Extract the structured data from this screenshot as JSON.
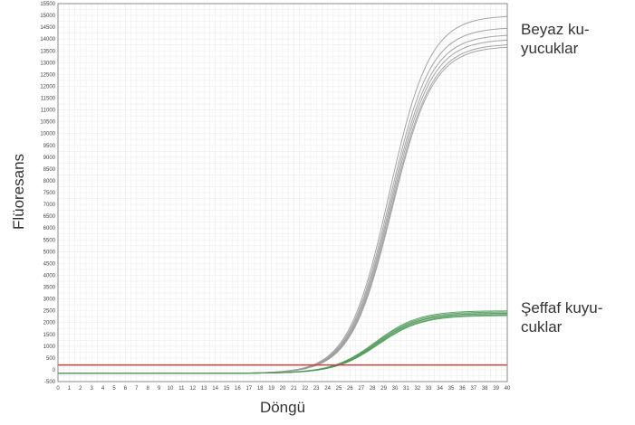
{
  "chart_data": {
    "type": "line",
    "xlabel": "Döngü",
    "ylabel": "Flüoresans",
    "xlim": [
      0,
      40
    ],
    "ylim": [
      -500,
      15500
    ],
    "x_ticks": [
      0,
      1,
      2,
      3,
      4,
      5,
      6,
      7,
      8,
      9,
      10,
      11,
      12,
      13,
      14,
      15,
      16,
      17,
      18,
      19,
      20,
      21,
      22,
      23,
      24,
      25,
      26,
      27,
      28,
      29,
      30,
      31,
      32,
      33,
      34,
      35,
      36,
      37,
      38,
      39,
      40
    ],
    "y_ticks": [
      -500,
      0,
      500,
      1000,
      1500,
      2000,
      2500,
      3000,
      3500,
      4000,
      4500,
      5000,
      5500,
      6000,
      6500,
      7000,
      7500,
      8000,
      8500,
      9000,
      9500,
      10000,
      10500,
      11000,
      11500,
      12000,
      12500,
      13000,
      13500,
      14000,
      14500,
      15000,
      15500
    ],
    "grid": true,
    "threshold": {
      "y": 200,
      "color": "#d23a3a"
    },
    "annotations": [
      {
        "lines": [
          "Beyaz ku-",
          "yucuklar"
        ],
        "anchor_series": "white"
      },
      {
        "lines": [
          "Şeffaf kuyu-",
          "cuklar"
        ],
        "anchor_series": "clear"
      }
    ],
    "series": [
      {
        "group": "white",
        "color": "#9a9a9a",
        "plateau": [
          15000,
          14500,
          14200,
          14000,
          13800,
          13700
        ],
        "midpoint": 29.6,
        "slope": 0.55,
        "baseline": -150
      },
      {
        "group": "clear",
        "color": "#4f9a5a",
        "plateau": [
          2500,
          2450,
          2400,
          2380,
          2330,
          2300
        ],
        "midpoint": 28.4,
        "slope": 0.52,
        "baseline": -150
      }
    ]
  }
}
